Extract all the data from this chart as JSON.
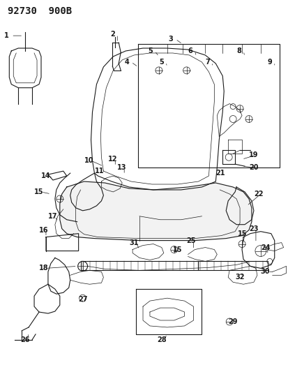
{
  "title": "92730  900B",
  "bg_color": "#ffffff",
  "line_color": "#1a1a1a",
  "figsize": [
    4.14,
    5.33
  ],
  "dpi": 100,
  "title_fontsize": 10,
  "label_fontsize": 7,
  "label_fontsize_bold": 7
}
